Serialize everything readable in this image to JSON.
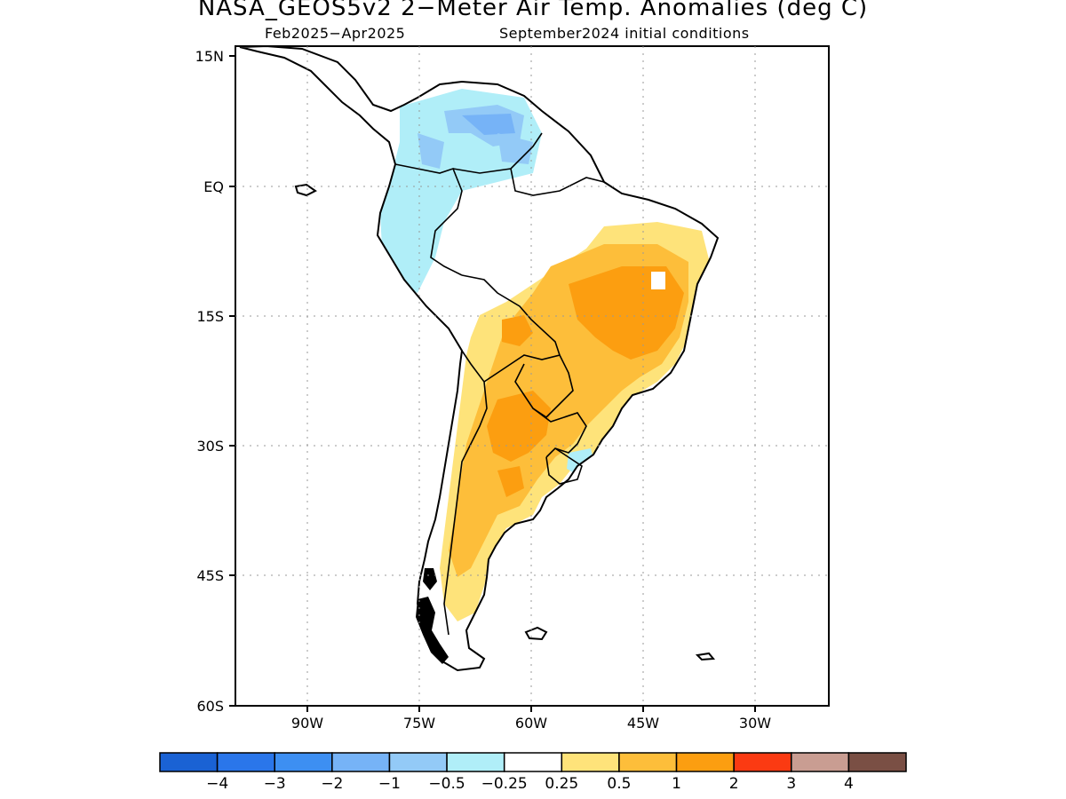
{
  "title": "NASA_GEOS5v2 2−Meter Air Temp. Anomalies (deg C)",
  "subtitle_left": "Feb2025−Apr2025",
  "subtitle_right": "September2024 initial conditions",
  "lat_labels": [
    "15N",
    "EQ",
    "15S",
    "30S",
    "45S",
    "60S"
  ],
  "lon_labels": [
    "90W",
    "75W",
    "60W",
    "45W",
    "30W"
  ],
  "colorbar": {
    "colors": [
      "#1a62d4",
      "#2a76ea",
      "#3d8ff2",
      "#76b3f7",
      "#93caf7",
      "#b0eef8",
      "#ffffff",
      "#fee37a",
      "#fdbe3a",
      "#fc9e10",
      "#fb3a12",
      "#c99d92",
      "#7a4f44"
    ],
    "labels": [
      "−4",
      "−3",
      "−2",
      "−1",
      "−0.5",
      "−0.25",
      "0.25",
      "0.5",
      "1",
      "2",
      "3",
      "4"
    ]
  },
  "colors": {
    "cool_light": "#b0eef8",
    "cool_mid": "#93caf7",
    "cool_strong": "#76b3f7",
    "warm_light": "#fee37a",
    "warm_mid": "#fdbe3a",
    "warm_strong": "#fc9e10"
  }
}
